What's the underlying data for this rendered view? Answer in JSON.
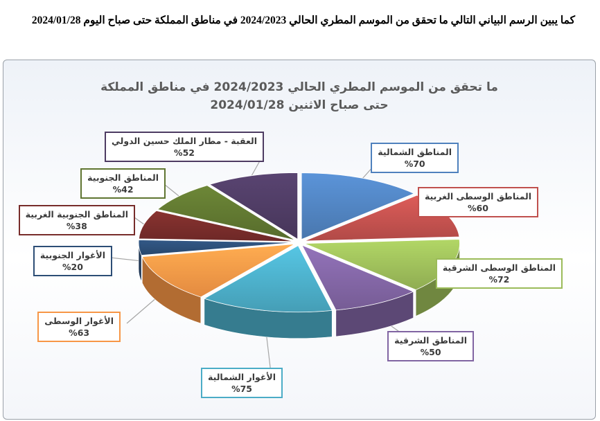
{
  "intro_text": "كما يبين الرسم البياني التالي ما تحقق من الموسم المطري الحالي 2024/2023 في مناطق المملكة حتى صباح اليوم 2024/01/28",
  "chart_data": {
    "type": "pie",
    "title_lines": [
      "ما تحقق من الموسم المطري الحالي 2024/2023 في مناطق المملكة",
      "حتى صباح الاثنين 2024/01/28"
    ],
    "categories": [
      "المناطق الشمالية",
      "المناطق الوسطى الغربية",
      "المناطق الوسطى الشرقية",
      "المناطق الشرقية",
      "الأغوار الشمالية",
      "الأغوار الوسطى",
      "الأغوار الجنوبية",
      "المناطق الجنوبية الغربية",
      "المناطق الجنوبية",
      "العقبة - مطار الملك حسين الدولي"
    ],
    "values": [
      70,
      60,
      72,
      50,
      75,
      63,
      20,
      38,
      42,
      52
    ],
    "value_labels": [
      "%70",
      "%60",
      "%72",
      "%50",
      "%75",
      "%63",
      "%20",
      "%38",
      "%42",
      "%52"
    ],
    "legend": "none",
    "colors": [
      "#4f81bd",
      "#c0504d",
      "#9bbb59",
      "#8064a2",
      "#4bacc6",
      "#f79646",
      "#2c4d75",
      "#772c2a",
      "#5f7530",
      "#4d3b62"
    ]
  }
}
